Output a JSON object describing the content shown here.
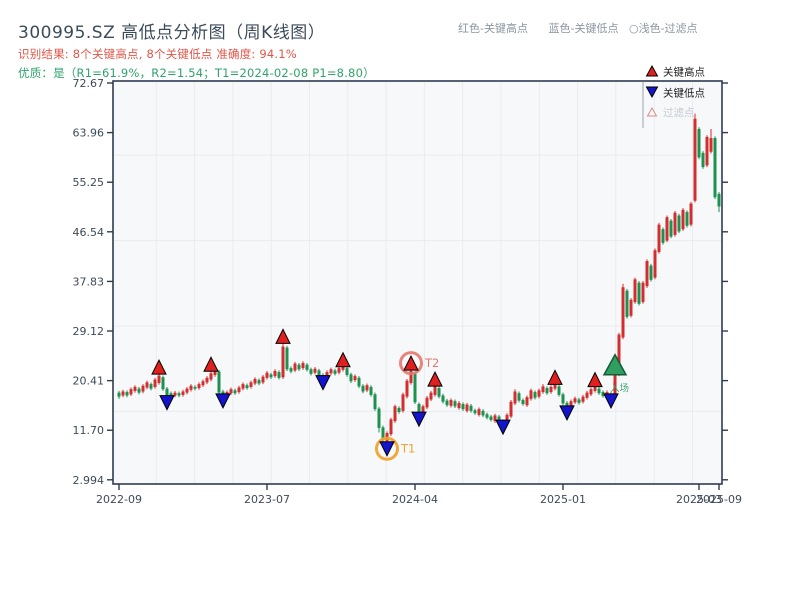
{
  "header": {
    "title": "300995.SZ 高低点分析图（周K线图）",
    "result_line": "识别结果: 8个关键高点, 8个关键低点  准确度: 94.1%",
    "quality_line": "优质：是（R1=61.9%，R2=1.54；T1=2024-02-08 P1=8.80）",
    "top_legend": {
      "high": "红色-关键高点",
      "low": "蓝色-关键低点",
      "filtered": "○浅色-过滤点"
    }
  },
  "chart_legend": {
    "key_high": "关键高点",
    "key_low": "关键低点",
    "filtered": "过滤点"
  },
  "annotations": {
    "t1": "T1",
    "t2": "T2",
    "entry": "入场"
  },
  "colors": {
    "up": "#d32e2e",
    "down": "#1d9150",
    "marker_high": "#e01f1f",
    "marker_low": "#1414cc",
    "entry_fill": "#2f9e5f",
    "entry_edge": "#145c36",
    "t1_accent": "#f0a332",
    "t2_accent": "#e4776d",
    "frame": "#2e3c52",
    "grid": "#e9ecf0",
    "plot_bg": "#f7f8fa",
    "tick_text": "#3e4a5a",
    "legend_text": "#1d1d1f",
    "legend_muted": "#c4cad1",
    "filtered_glyph_edge": "#d09090",
    "filtered_glyph_fill": "#fdf5f3"
  },
  "chart_data": {
    "type": "candlestick",
    "symbol": "300995.SZ",
    "timeframe": "weekly",
    "ylim": [
      2.994,
      72.67
    ],
    "y_ticks": [
      72.67,
      63.96,
      55.25,
      46.54,
      37.83,
      29.12,
      20.41,
      11.7,
      2.994
    ],
    "y_tick_labels": [
      "72.67",
      "63.96",
      "55.25",
      "46.54",
      "37.83",
      "29.12",
      "20.41",
      "11.70",
      "2.994"
    ],
    "x_ticks": [
      {
        "index": 0,
        "label": "2022-09"
      },
      {
        "index": 37,
        "label": "2023-07"
      },
      {
        "index": 74,
        "label": "2024-04"
      },
      {
        "index": 111,
        "label": "2025-01"
      },
      {
        "index": 145,
        "label": "2025-03"
      },
      {
        "index": 150,
        "label": "2025-09"
      }
    ],
    "grid_price_lines": [
      60,
      45,
      30,
      15
    ],
    "candles": [
      [
        18.3,
        17.6
      ],
      [
        17.8,
        18.5
      ],
      [
        18.4,
        17.8
      ],
      [
        18.0,
        18.9
      ],
      [
        18.6,
        19.3
      ],
      [
        19.0,
        18.3
      ],
      [
        18.5,
        19.5
      ],
      [
        19.2,
        20.1
      ],
      [
        19.8,
        19.0
      ],
      [
        19.3,
        20.6
      ],
      [
        20.0,
        21.3
      ],
      [
        21.0,
        18.9
      ],
      [
        19.0,
        17.6
      ],
      [
        18.2,
        17.7
      ],
      [
        17.8,
        18.3
      ],
      [
        18.2,
        17.8
      ],
      [
        17.9,
        18.5
      ],
      [
        18.3,
        19.0
      ],
      [
        18.8,
        19.5
      ],
      [
        19.3,
        19.0
      ],
      [
        19.1,
        19.8
      ],
      [
        19.6,
        20.3
      ],
      [
        20.1,
        20.9
      ],
      [
        20.6,
        21.7
      ],
      [
        21.4,
        22.0
      ],
      [
        22.0,
        18.3
      ],
      [
        18.5,
        17.6
      ],
      [
        17.8,
        18.4
      ],
      [
        18.2,
        18.9
      ],
      [
        18.7,
        18.2
      ],
      [
        18.4,
        19.2
      ],
      [
        19.0,
        19.8
      ],
      [
        19.6,
        19.1
      ],
      [
        19.3,
        20.1
      ],
      [
        19.9,
        20.7
      ],
      [
        20.5,
        19.9
      ],
      [
        20.1,
        21.1
      ],
      [
        20.9,
        21.8
      ],
      [
        21.5,
        21.0
      ],
      [
        21.2,
        22.1
      ],
      [
        21.9,
        20.9
      ],
      [
        21.0,
        26.4
      ],
      [
        26.2,
        22.4
      ],
      [
        22.6,
        22.0
      ],
      [
        22.2,
        23.4
      ],
      [
        23.2,
        22.4
      ],
      [
        22.6,
        23.5
      ],
      [
        23.2,
        22.3
      ],
      [
        22.4,
        21.6
      ],
      [
        21.8,
        22.5
      ],
      [
        22.2,
        21.3
      ],
      [
        21.4,
        20.8
      ],
      [
        21.0,
        21.9
      ],
      [
        21.7,
        22.4
      ],
      [
        22.2,
        21.6
      ],
      [
        21.8,
        22.6
      ],
      [
        22.3,
        22.9
      ],
      [
        22.6,
        21.4
      ],
      [
        21.5,
        20.3
      ],
      [
        20.5,
        21.2
      ],
      [
        20.9,
        19.4
      ],
      [
        19.5,
        18.5
      ],
      [
        18.7,
        19.6
      ],
      [
        19.3,
        17.9
      ],
      [
        18.0,
        15.4
      ],
      [
        15.5,
        12.1
      ],
      [
        12.2,
        10.0
      ],
      [
        9.8,
        11.2
      ],
      [
        11.0,
        13.6
      ],
      [
        13.3,
        15.9
      ],
      [
        15.6,
        14.9
      ],
      [
        15.1,
        18.0
      ],
      [
        17.6,
        20.4
      ],
      [
        20.0,
        22.1
      ],
      [
        21.6,
        16.6
      ],
      [
        16.3,
        14.4
      ],
      [
        14.6,
        15.9
      ],
      [
        15.7,
        17.4
      ],
      [
        17.1,
        18.3
      ],
      [
        17.9,
        19.4
      ],
      [
        19.1,
        17.6
      ],
      [
        17.8,
        16.7
      ],
      [
        16.9,
        16.1
      ],
      [
        16.0,
        17.0
      ],
      [
        16.8,
        15.9
      ],
      [
        15.6,
        16.5
      ],
      [
        16.3,
        15.4
      ],
      [
        15.1,
        16.2
      ],
      [
        16.0,
        15.1
      ],
      [
        15.2,
        14.7
      ],
      [
        14.4,
        15.4
      ],
      [
        15.1,
        14.3
      ],
      [
        14.5,
        13.9
      ],
      [
        14.1,
        13.5
      ],
      [
        13.3,
        14.3
      ],
      [
        14.1,
        13.2
      ],
      [
        13.3,
        12.9
      ],
      [
        13.1,
        14.4
      ],
      [
        14.1,
        16.7
      ],
      [
        16.4,
        18.5
      ],
      [
        18.2,
        16.9
      ],
      [
        17.0,
        16.3
      ],
      [
        16.1,
        17.5
      ],
      [
        17.2,
        18.7
      ],
      [
        18.4,
        17.4
      ],
      [
        17.6,
        18.7
      ],
      [
        18.4,
        19.4
      ],
      [
        19.1,
        18.2
      ],
      [
        18.4,
        19.3
      ],
      [
        19.0,
        19.8
      ],
      [
        19.4,
        17.9
      ],
      [
        18.0,
        16.4
      ],
      [
        16.5,
        15.5
      ],
      [
        15.8,
        16.8
      ],
      [
        16.6,
        17.3
      ],
      [
        17.1,
        16.5
      ],
      [
        16.7,
        17.6
      ],
      [
        17.4,
        18.3
      ],
      [
        18.0,
        18.9
      ],
      [
        18.6,
        19.3
      ],
      [
        19.0,
        18.2
      ],
      [
        18.4,
        17.7
      ],
      [
        17.8,
        18.4
      ],
      [
        18.1,
        17.5
      ],
      [
        17.7,
        21.8
      ],
      [
        21.5,
        28.5
      ],
      [
        28.0,
        36.8
      ],
      [
        36.2,
        31.6
      ],
      [
        31.8,
        34.6
      ],
      [
        34.2,
        38.2
      ],
      [
        37.6,
        33.9
      ],
      [
        34.2,
        37.6
      ],
      [
        37.0,
        41.4
      ],
      [
        40.6,
        38.1
      ],
      [
        38.5,
        43.3
      ],
      [
        43.0,
        47.8
      ],
      [
        47.0,
        44.6
      ],
      [
        45.0,
        49.1
      ],
      [
        48.5,
        45.7
      ],
      [
        46.0,
        49.9
      ],
      [
        49.4,
        46.6
      ],
      [
        47.0,
        50.4
      ],
      [
        50.0,
        47.6
      ],
      [
        47.8,
        51.5
      ],
      [
        52.0,
        66.4
      ],
      [
        64.6,
        59.6
      ],
      [
        60.4,
        57.9
      ],
      [
        58.2,
        63.2
      ],
      [
        60.6,
        63.0
      ],
      [
        63.0,
        52.6
      ],
      [
        53.2,
        51.0
      ]
    ],
    "wick_overrides": {
      "0": [
        null,
        17.2
      ],
      "10": [
        21.9,
        null
      ],
      "12": [
        null,
        16.9
      ],
      "23": [
        22.4,
        null
      ],
      "25": [
        null,
        17.7
      ],
      "26": [
        null,
        17.2
      ],
      "41": [
        27.3,
        null
      ],
      "51": [
        null,
        20.4
      ],
      "56": [
        23.2,
        null
      ],
      "65": [
        null,
        11.3
      ],
      "66": [
        null,
        9.3
      ],
      "67": [
        null,
        8.8
      ],
      "69": [
        16.2,
        null
      ],
      "73": [
        22.6,
        null
      ],
      "75": [
        null,
        14.0
      ],
      "79": [
        19.8,
        null
      ],
      "95": [
        null,
        12.9
      ],
      "96": [
        null,
        12.6
      ],
      "99": [
        18.9,
        null
      ],
      "103": [
        19.0,
        null
      ],
      "106": [
        19.8,
        null
      ],
      "109": [
        20.1,
        null
      ],
      "112": [
        null,
        15.1
      ],
      "119": [
        19.7,
        null
      ],
      "123": [
        null,
        17.2
      ],
      "126": [
        37.4,
        null
      ],
      "144": [
        67.3,
        null
      ],
      "148": [
        64.6,
        null
      ],
      "150": [
        null,
        50.0
      ]
    },
    "key_high_indices": [
      10,
      23,
      41,
      56,
      73,
      79,
      109,
      119
    ],
    "key_low_indices": [
      12,
      26,
      51,
      67,
      75,
      96,
      112,
      123
    ],
    "entry_index": 124,
    "t1_index": 67,
    "t2_index": 73
  }
}
